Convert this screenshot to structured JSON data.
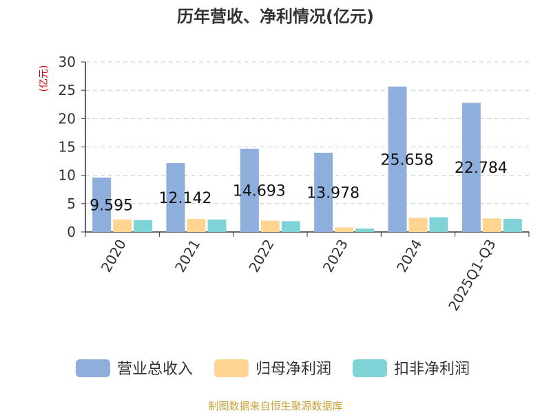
{
  "chart_data": {
    "type": "bar",
    "title": "历年营收、净利情况(亿元)",
    "ylabel": "(亿元)",
    "xlabel": "",
    "categories": [
      "2020",
      "2021",
      "2022",
      "2023",
      "2024",
      "2025Q1-Q3"
    ],
    "ylim": [
      0,
      30
    ],
    "yticks": [
      0,
      5,
      10,
      15,
      20,
      25,
      30
    ],
    "grid": true,
    "legend_position": "bottom",
    "series": [
      {
        "name": "营业总收入",
        "color": "#8eaedb",
        "values": [
          9.595,
          12.142,
          14.693,
          13.978,
          25.658,
          22.784
        ],
        "data_labels": [
          "9.595",
          "12.142",
          "14.693",
          "13.978",
          "25.658",
          "22.784"
        ]
      },
      {
        "name": "归母净利润",
        "color": "#ffd591",
        "values": [
          2.2,
          2.3,
          2.0,
          0.8,
          2.5,
          2.4
        ]
      },
      {
        "name": "扣非净利润",
        "color": "#7fd3d6",
        "values": [
          2.1,
          2.2,
          1.9,
          0.6,
          2.6,
          2.3
        ]
      }
    ]
  },
  "source": "制图数据来自恒生聚源数据库"
}
